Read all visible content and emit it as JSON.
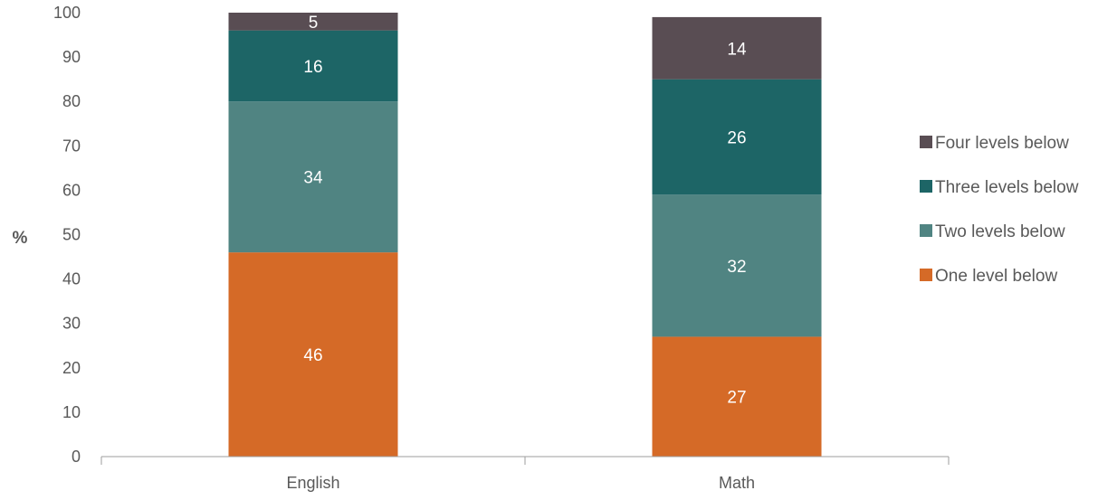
{
  "chart_data": {
    "type": "bar",
    "stacked": true,
    "categories": [
      "English",
      "Math"
    ],
    "series": [
      {
        "name": "One level below",
        "values": [
          46,
          27
        ],
        "color": "#D56A27"
      },
      {
        "name": "Two levels below",
        "values": [
          34,
          32
        ],
        "color": "#508482"
      },
      {
        "name": "Three levels below",
        "values": [
          16,
          26
        ],
        "color": "#1D6566"
      },
      {
        "name": "Four levels below",
        "values": [
          5,
          14
        ],
        "color": "#594D53"
      }
    ],
    "title": "",
    "xlabel": "",
    "ylabel": "%",
    "ylim": [
      0,
      100
    ],
    "yticks": [
      "0",
      "10",
      "20",
      "30",
      "40",
      "50",
      "60",
      "70",
      "80",
      "90",
      "100"
    ],
    "grid": false,
    "legend_position": "right",
    "legend_order": [
      "Four levels below",
      "Three levels below",
      "Two levels below",
      "One level below"
    ],
    "label_color": "#ffffff",
    "axis_text_color": "#595959",
    "axis_line_color": "#9E9E9E"
  }
}
